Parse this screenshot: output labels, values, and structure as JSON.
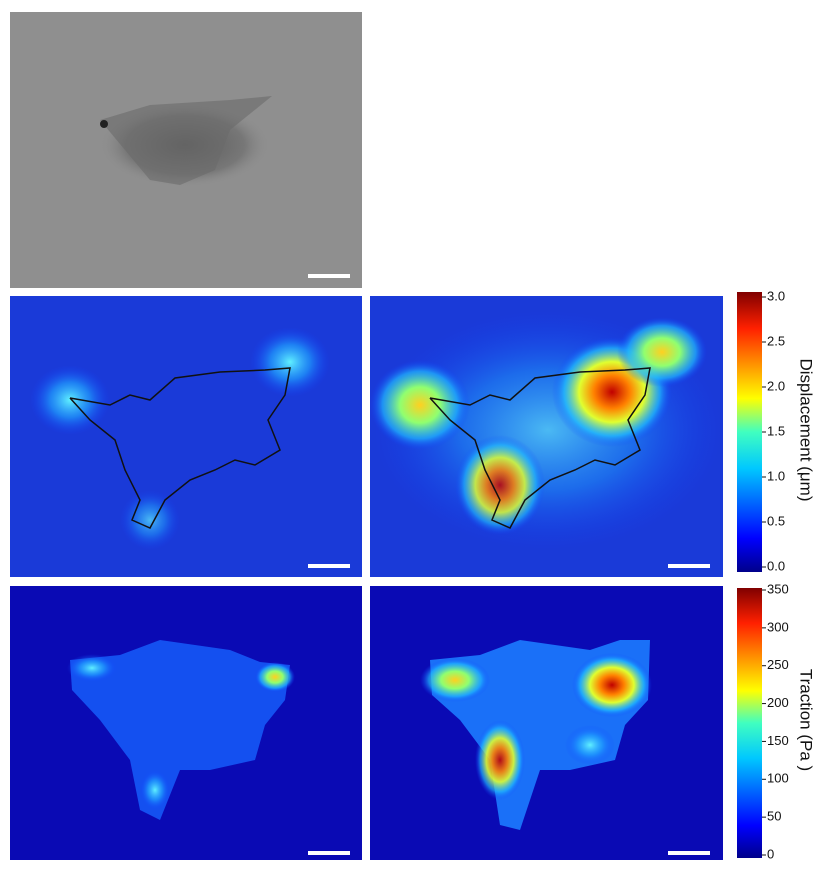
{
  "displacement_colorbar": {
    "label": "Displacement (μm)",
    "lim": [
      0,
      3
    ],
    "ticks": [
      {
        "value": 0,
        "label": "0.0"
      },
      {
        "value": 0.5,
        "label": "0.5"
      },
      {
        "value": 1,
        "label": "1.0"
      },
      {
        "value": 1.5,
        "label": "1.5"
      },
      {
        "value": 2,
        "label": "2.0"
      },
      {
        "value": 2.5,
        "label": "2.5"
      },
      {
        "value": 3,
        "label": "3.0"
      }
    ]
  },
  "traction_colorbar": {
    "label": "Traction (Pa )",
    "lim": [
      0,
      350
    ],
    "ticks": [
      0,
      50,
      100,
      150,
      200,
      250,
      300,
      350
    ]
  }
}
